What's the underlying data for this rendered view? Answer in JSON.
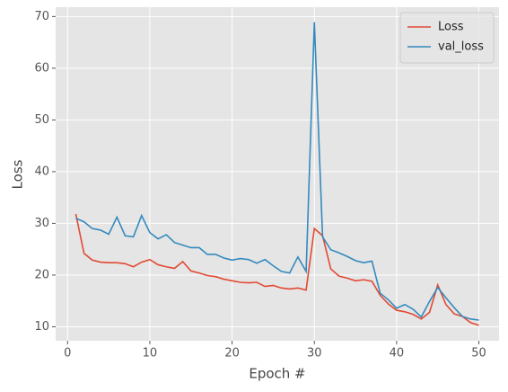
{
  "chart_data": {
    "type": "line",
    "x_label": "Epoch #",
    "y_label": "Loss",
    "x": [
      1,
      2,
      3,
      4,
      5,
      6,
      7,
      8,
      9,
      10,
      11,
      12,
      13,
      14,
      15,
      16,
      17,
      18,
      19,
      20,
      21,
      22,
      23,
      24,
      25,
      26,
      27,
      28,
      29,
      30,
      31,
      32,
      33,
      34,
      35,
      36,
      37,
      38,
      39,
      40,
      41,
      42,
      43,
      44,
      45,
      46,
      47,
      48,
      49,
      50
    ],
    "series": [
      {
        "name": "Loss",
        "color": "#E24A33",
        "values": [
          31.8,
          24.2,
          22.9,
          22.5,
          22.4,
          22.4,
          22.2,
          21.6,
          22.5,
          23.0,
          22.0,
          21.6,
          21.3,
          22.6,
          20.8,
          20.4,
          19.9,
          19.7,
          19.2,
          18.9,
          18.6,
          18.5,
          18.6,
          17.8,
          18.0,
          17.5,
          17.3,
          17.5,
          17.1,
          29.0,
          27.6,
          21.2,
          19.8,
          19.4,
          18.9,
          19.1,
          18.8,
          16.1,
          14.4,
          13.2,
          12.9,
          12.4,
          11.5,
          12.8,
          18.1,
          14.3,
          12.5,
          12.0,
          10.8,
          10.3
        ]
      },
      {
        "name": "val_loss",
        "color": "#348ABD",
        "values": [
          31.0,
          30.3,
          29.0,
          28.7,
          27.9,
          31.2,
          27.6,
          27.4,
          31.5,
          28.2,
          27.0,
          27.8,
          26.3,
          25.8,
          25.3,
          25.3,
          24.0,
          24.0,
          23.3,
          22.9,
          23.2,
          23.0,
          22.3,
          23.0,
          21.8,
          20.7,
          20.4,
          23.5,
          20.7,
          68.9,
          27.4,
          24.9,
          24.3,
          23.6,
          22.8,
          22.4,
          22.7,
          16.5,
          15.2,
          13.6,
          14.3,
          13.4,
          11.9,
          14.9,
          17.6,
          15.6,
          13.7,
          12.0,
          11.5,
          11.3
        ]
      }
    ],
    "xlim": [
      -1.45,
      52.45
    ],
    "ylim": [
      7.3,
      71.8
    ],
    "xticks": [
      0,
      10,
      20,
      30,
      40,
      50
    ],
    "yticks": [
      10,
      20,
      30,
      40,
      50,
      60,
      70
    ],
    "grid": true,
    "legend": "upper right"
  }
}
